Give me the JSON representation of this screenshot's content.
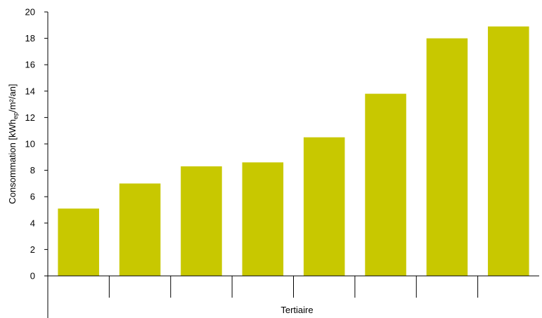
{
  "chart_data": {
    "type": "bar",
    "categories": [
      "",
      "",
      "",
      "",
      "",
      "",
      "",
      ""
    ],
    "group_label": "Tertiaire",
    "values": [
      5.1,
      7.0,
      8.3,
      8.6,
      10.5,
      13.8,
      18.0,
      18.9
    ],
    "ylabel_prefix": "Consommation [kWh",
    "ylabel_sub": "ep",
    "ylabel_suffix": "/m²/an]",
    "ylim": [
      0,
      20
    ],
    "yticks": [
      0,
      2,
      4,
      6,
      8,
      10,
      12,
      14,
      16,
      18,
      20
    ],
    "grid": false,
    "legend": "none",
    "bar_color": "#c8c800"
  }
}
